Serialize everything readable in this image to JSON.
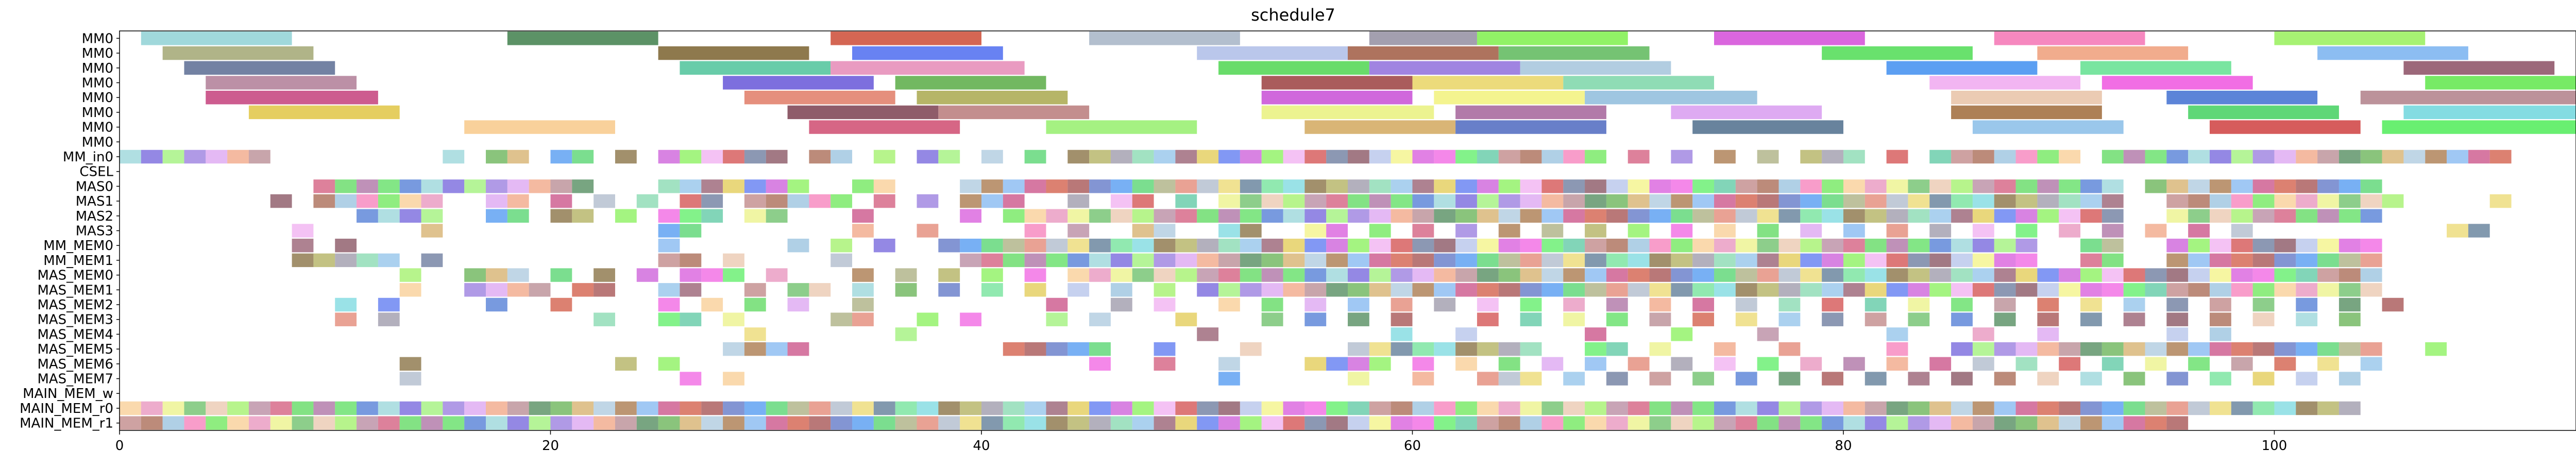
{
  "chart_data": {
    "type": "gantt",
    "title": "schedule7",
    "xlabel": "",
    "ylabel": "",
    "xlim": [
      0,
      114
    ],
    "x_ticks": [
      0,
      20,
      40,
      60,
      80,
      100
    ],
    "grid": false,
    "legend": "none",
    "rows": [
      "MM0",
      "MM0",
      "MM0",
      "MM0",
      "MM0",
      "MM0",
      "MM0",
      "MM0",
      "MM_in0",
      "CSEL",
      "MAS0",
      "MAS1",
      "MAS2",
      "MAS3",
      "MM_MEM0",
      "MM_MEM1",
      "MAS_MEM0",
      "MAS_MEM1",
      "MAS_MEM2",
      "MAS_MEM3",
      "MAS_MEM4",
      "MAS_MEM5",
      "MAS_MEM6",
      "MAS_MEM7",
      "MAIN_MEM_w",
      "MAIN_MEM_r0",
      "MAIN_MEM_r1"
    ],
    "mm_tasks": [
      [
        [
          1,
          8,
          "#8fd1d5"
        ],
        [
          18,
          25,
          "#3f7f4b"
        ],
        [
          33,
          40,
          "#cd4b35"
        ],
        [
          45,
          52,
          "#a6b4c6"
        ],
        [
          58,
          63,
          "#938ea1"
        ],
        [
          63,
          70,
          "#7ef04b"
        ],
        [
          74,
          81,
          "#d44bd8"
        ],
        [
          87,
          94,
          "#f573b4"
        ],
        [
          100,
          107,
          "#98f05b"
        ]
      ],
      [
        [
          2,
          9,
          "#a2a773"
        ],
        [
          25,
          32,
          "#7a612e"
        ],
        [
          34,
          41,
          "#4d6cf0"
        ],
        [
          50,
          57,
          "#aebde8"
        ],
        [
          57,
          64,
          "#a05a42"
        ],
        [
          64,
          71,
          "#5db95a"
        ],
        [
          79,
          86,
          "#4fdc53"
        ],
        [
          89,
          96,
          "#ef9d79"
        ],
        [
          102,
          109,
          "#78b1f0"
        ]
      ],
      [
        [
          3,
          10,
          "#5b6c93"
        ],
        [
          26,
          33,
          "#4dc39a"
        ],
        [
          33,
          42,
          "#e589b6"
        ],
        [
          51,
          58,
          "#4fd650"
        ],
        [
          58,
          65,
          "#8f6fdc"
        ],
        [
          65,
          72,
          "#a5c4dc"
        ],
        [
          82,
          89,
          "#3f8ef0"
        ],
        [
          91,
          98,
          "#62e08f"
        ],
        [
          106,
          113,
          "#8b4d63"
        ]
      ],
      [
        [
          4,
          11,
          "#b07d97"
        ],
        [
          28,
          35,
          "#6656d8"
        ],
        [
          36,
          43,
          "#59ab45"
        ],
        [
          53,
          60,
          "#9b3f3f"
        ],
        [
          60,
          67,
          "#e9d564"
        ],
        [
          67,
          74,
          "#7bd6a8"
        ],
        [
          84,
          91,
          "#f0a8f0"
        ],
        [
          92,
          99,
          "#ef55df"
        ],
        [
          107,
          114,
          "#5fe64a"
        ]
      ],
      [
        [
          4,
          12,
          "#c43f7b"
        ],
        [
          29,
          36,
          "#e07b66"
        ],
        [
          37,
          44,
          "#a9a84e"
        ],
        [
          53,
          60,
          "#c84ed6"
        ],
        [
          61,
          68,
          "#f2f27b"
        ],
        [
          68,
          76,
          "#8ebcdc"
        ],
        [
          85,
          92,
          "#e8c2a6"
        ],
        [
          95,
          102,
          "#3f6fd1"
        ],
        [
          104,
          114,
          "#b07f88"
        ]
      ],
      [
        [
          6,
          13,
          "#e0c644"
        ],
        [
          31,
          38,
          "#7b4050"
        ],
        [
          38,
          45,
          "#b97a7a"
        ],
        [
          53,
          61,
          "#e9f17d"
        ],
        [
          62,
          69,
          "#a4639a"
        ],
        [
          72,
          79,
          "#d89bf0"
        ],
        [
          85,
          92,
          "#9f6a38"
        ],
        [
          96,
          103,
          "#43d05f"
        ],
        [
          106,
          114,
          "#6fd6dd"
        ]
      ],
      [
        [
          16,
          23,
          "#f8c98a"
        ],
        [
          32,
          39,
          "#cf4b70"
        ],
        [
          43,
          50,
          "#95ef6c"
        ],
        [
          55,
          62,
          "#d2a85e"
        ],
        [
          62,
          69,
          "#4e68c0"
        ],
        [
          73,
          80,
          "#4d6d8c"
        ],
        [
          86,
          93,
          "#88bde8"
        ],
        [
          97,
          104,
          "#cf3f3f"
        ],
        [
          105,
          114,
          "#4fec58"
        ]
      ]
    ],
    "sched_rows": [
      "MM_in0",
      "MAS0",
      "MAS1",
      "MAS2",
      "MAS3",
      "MM_MEM0",
      "MM_MEM1",
      "MAS_MEM0",
      "MAS_MEM1",
      "MAS_MEM2",
      "MAS_MEM3",
      "MAS_MEM4",
      "MAS_MEM5",
      "MAS_MEM6",
      "MAS_MEM7",
      "MAIN_MEM_r0",
      "MAIN_MEM_r1"
    ],
    "palette": [
      "#8fd1d5",
      "#a2a773",
      "#5b6c93",
      "#b07d97",
      "#c43f7b",
      "#e0c644",
      "#f8c98a",
      "#3f7f4b",
      "#7a612e",
      "#4dc39a",
      "#6656d8",
      "#e07b66",
      "#7b4050",
      "#cf4b70",
      "#cd4b35",
      "#4d6cf0",
      "#e589b6",
      "#59ab45",
      "#a9a84e",
      "#b97a7a",
      "#95ef6c",
      "#a6b4c6",
      "#aebde8",
      "#4fd650",
      "#9b3f3f",
      "#c84ed6",
      "#e9f17d",
      "#d2a85e",
      "#938ea1",
      "#a05a42",
      "#8f6fdc",
      "#e9d564",
      "#f2f27b",
      "#a4639a",
      "#4e68c0",
      "#7ef04b",
      "#5db95a",
      "#a5c4dc",
      "#7bd6a8",
      "#8ebcdc",
      "#d89bf0",
      "#4d6d8c",
      "#d44bd8",
      "#4fdc53",
      "#3f8ef0",
      "#f0a8f0",
      "#e8c2a6",
      "#9f6a38",
      "#88bde8",
      "#f573b4",
      "#ef9d79",
      "#62e08f",
      "#ef55df",
      "#3f6fd1",
      "#43d05f",
      "#cf3f3f",
      "#98f05b",
      "#78b1f0",
      "#8b4d63",
      "#5fe64a",
      "#b07f88",
      "#6fd6dd",
      "#4fec58"
    ],
    "sched_tasks": {
      "MM_in0": [
        0,
        1,
        2,
        3,
        4,
        5,
        6,
        15,
        17,
        18,
        20,
        21,
        23,
        25,
        26,
        27,
        28,
        29,
        30,
        32,
        33,
        35,
        37,
        38,
        40,
        42,
        44,
        45,
        46,
        47,
        48,
        49,
        50,
        51,
        52,
        53,
        54,
        55,
        56,
        57,
        58,
        59,
        60,
        61,
        62,
        63,
        64,
        65,
        66,
        67,
        68,
        70,
        72,
        74,
        76,
        78,
        79,
        80,
        82,
        84,
        85,
        86,
        87,
        88,
        89,
        90,
        92,
        93,
        94,
        95,
        96,
        97,
        98,
        99,
        100,
        101,
        102,
        103,
        104,
        105,
        106,
        107,
        108,
        109,
        110
      ],
      "MAS0": [
        9,
        10,
        11,
        12,
        13,
        14,
        15,
        16,
        17,
        18,
        19,
        20,
        21,
        25,
        26,
        27,
        28,
        29,
        30,
        31,
        34,
        35,
        39,
        40,
        41,
        42,
        43,
        44,
        45,
        46,
        47,
        48,
        49,
        50,
        51,
        52,
        53,
        54,
        55,
        56,
        57,
        58,
        59,
        60,
        61,
        62,
        63,
        64,
        65,
        66,
        67,
        68,
        69,
        70,
        71,
        72,
        73,
        74,
        75,
        76,
        77,
        78,
        79,
        80,
        81,
        82,
        83,
        84,
        85,
        86,
        87,
        88,
        89,
        90,
        91,
        92,
        94,
        95,
        96,
        97,
        98,
        99,
        100,
        101,
        102,
        103,
        104
      ],
      "MAS1": [
        7,
        9,
        10,
        11,
        12,
        13,
        14,
        17,
        18,
        20,
        22,
        24,
        26,
        27,
        29,
        30,
        31,
        32,
        33,
        35,
        37,
        39,
        40,
        41,
        44,
        46,
        47,
        49,
        51,
        52,
        53,
        54,
        55,
        56,
        57,
        58,
        59,
        60,
        61,
        62,
        63,
        64,
        65,
        66,
        67,
        68,
        69,
        70,
        71,
        72,
        73,
        74,
        75,
        76,
        77,
        78,
        79,
        80,
        81,
        82,
        83,
        84,
        85,
        86,
        87,
        88,
        89,
        90,
        91,
        92,
        95,
        96,
        97,
        98,
        99,
        100,
        101,
        102,
        103,
        104,
        105,
        110
      ],
      "MAS2": [
        11,
        12,
        13,
        14,
        17,
        18,
        20,
        21,
        23,
        25,
        26,
        27,
        29,
        30,
        34,
        39,
        41,
        42,
        43,
        44,
        45,
        46,
        47,
        48,
        49,
        50,
        51,
        52,
        53,
        54,
        55,
        56,
        57,
        58,
        59,
        60,
        61,
        62,
        63,
        64,
        65,
        66,
        67,
        68,
        69,
        70,
        71,
        72,
        73,
        74,
        75,
        76,
        77,
        78,
        79,
        80,
        81,
        82,
        83,
        84,
        85,
        86,
        87,
        88,
        89,
        90,
        91,
        92,
        95,
        96,
        97,
        98,
        99,
        100,
        101,
        102,
        103,
        104
      ],
      "MAS3": [
        8,
        14,
        25,
        26,
        34,
        37,
        42,
        44,
        47,
        48,
        51,
        52,
        55,
        56,
        58,
        60,
        62,
        64,
        66,
        68,
        70,
        72,
        74,
        76,
        78,
        80,
        82,
        84,
        86,
        88,
        90,
        92,
        94,
        96,
        98,
        108,
        109
      ],
      "MM_MEM0": [
        8,
        10,
        25,
        31,
        33,
        35,
        38,
        39,
        40,
        41,
        42,
        43,
        44,
        45,
        46,
        47,
        48,
        49,
        50,
        51,
        52,
        53,
        54,
        55,
        56,
        57,
        58,
        59,
        60,
        61,
        62,
        63,
        64,
        65,
        66,
        67,
        68,
        69,
        70,
        71,
        72,
        73,
        74,
        75,
        76,
        77,
        78,
        79,
        80,
        81,
        82,
        83,
        84,
        85,
        86,
        87,
        88,
        91,
        92,
        95,
        96,
        97,
        98,
        99,
        100,
        101,
        102,
        103,
        104
      ],
      "MM_MEM1": [
        8,
        9,
        10,
        11,
        12,
        14,
        25,
        26,
        28,
        33,
        39,
        40,
        41,
        42,
        43,
        44,
        45,
        46,
        47,
        48,
        49,
        50,
        51,
        52,
        53,
        54,
        55,
        56,
        57,
        58,
        59,
        60,
        61,
        62,
        63,
        64,
        65,
        66,
        67,
        68,
        69,
        70,
        71,
        72,
        73,
        74,
        75,
        76,
        77,
        78,
        79,
        80,
        81,
        82,
        83,
        84,
        85,
        86,
        87,
        88,
        91,
        92,
        95,
        96,
        97,
        98,
        99,
        100,
        101,
        102,
        103,
        104
      ],
      "MAS_MEM0": [
        13,
        16,
        17,
        18,
        20,
        22,
        24,
        26,
        27,
        28,
        30,
        34,
        36,
        38,
        40,
        42,
        44,
        45,
        46,
        47,
        48,
        49,
        50,
        51,
        52,
        53,
        54,
        55,
        56,
        57,
        58,
        59,
        60,
        61,
        62,
        63,
        64,
        65,
        66,
        67,
        68,
        69,
        70,
        71,
        72,
        73,
        74,
        75,
        76,
        77,
        78,
        79,
        80,
        81,
        82,
        83,
        84,
        85,
        86,
        87,
        88,
        89,
        90,
        91,
        92,
        93,
        94,
        95,
        96,
        97,
        98,
        99,
        100,
        101,
        102,
        103,
        104
      ],
      "MAS_MEM1": [
        13,
        16,
        17,
        18,
        19,
        21,
        22,
        25,
        26,
        29,
        31,
        32,
        34,
        36,
        38,
        40,
        42,
        44,
        46,
        48,
        50,
        51,
        52,
        53,
        54,
        55,
        56,
        57,
        58,
        59,
        60,
        61,
        62,
        63,
        64,
        65,
        66,
        67,
        68,
        69,
        70,
        71,
        72,
        73,
        74,
        75,
        76,
        77,
        78,
        79,
        80,
        81,
        82,
        83,
        84,
        85,
        86,
        87,
        88,
        89,
        90,
        91,
        92,
        93,
        94,
        95,
        96,
        97,
        98,
        99,
        100,
        101,
        102,
        103,
        104
      ],
      "MAS_MEM2": [
        10,
        12,
        17,
        20,
        25,
        27,
        29,
        31,
        34,
        43,
        46,
        48,
        51,
        53,
        55,
        57,
        59,
        61,
        63,
        65,
        67,
        69,
        71,
        73,
        75,
        77,
        79,
        81,
        83,
        85,
        87,
        89,
        91,
        93,
        95,
        97,
        99,
        101,
        103,
        105
      ],
      "MAS_MEM3": [
        10,
        12,
        22,
        25,
        26,
        28,
        33,
        34,
        37,
        39,
        43,
        45,
        49,
        53,
        55,
        57,
        59,
        63,
        65,
        67,
        69,
        71,
        73,
        75,
        77,
        79,
        81,
        83,
        85,
        87,
        89,
        91,
        93,
        95,
        97,
        99,
        101,
        103
      ],
      "MAS_MEM4": [
        29,
        36,
        50,
        59,
        62,
        68,
        72,
        76,
        82,
        86,
        89,
        95,
        97
      ],
      "MAS_MEM5": [
        28,
        29,
        30,
        31,
        41,
        42,
        43,
        44,
        45,
        48,
        52,
        57,
        58,
        59,
        60,
        61,
        62,
        63,
        64,
        65,
        68,
        69,
        71,
        74,
        77,
        82,
        85,
        86,
        87,
        88,
        89,
        90,
        91,
        92,
        93,
        94,
        95,
        96,
        97,
        98,
        99,
        100,
        101,
        102,
        103,
        104,
        107
      ],
      "MAS_MEM6": [
        13,
        23,
        25,
        45,
        48,
        51,
        55,
        56,
        57,
        58,
        60,
        62,
        64,
        66,
        68,
        70,
        72,
        74,
        76,
        78,
        80,
        82,
        84,
        86,
        88,
        90,
        92,
        94,
        96,
        98,
        100,
        102,
        104
      ],
      "MAS_MEM7": [
        13,
        26,
        28,
        51,
        57,
        60,
        63,
        64,
        65,
        67,
        69,
        71,
        73,
        75,
        77,
        79,
        81,
        83,
        85,
        87,
        89,
        91,
        93,
        95,
        97,
        99,
        101,
        103
      ],
      "MAIN_MEM_r0": [
        0,
        1,
        2,
        3,
        4,
        5,
        6,
        7,
        8,
        9,
        10,
        11,
        12,
        13,
        14,
        15,
        16,
        17,
        18,
        19,
        20,
        21,
        22,
        23,
        24,
        25,
        26,
        27,
        28,
        29,
        30,
        31,
        32,
        33,
        34,
        35,
        36,
        37,
        38,
        39,
        40,
        41,
        42,
        43,
        44,
        45,
        46,
        47,
        48,
        49,
        50,
        51,
        52,
        53,
        54,
        55,
        56,
        57,
        58,
        59,
        60,
        61,
        62,
        63,
        64,
        65,
        66,
        67,
        68,
        69,
        70,
        71,
        72,
        73,
        74,
        75,
        76,
        77,
        78,
        79,
        80,
        81,
        82,
        83,
        84,
        85,
        86,
        87,
        88,
        89,
        90,
        91,
        92,
        93,
        94,
        95,
        96,
        97,
        98,
        99,
        100,
        101,
        102,
        103
      ],
      "MAIN_MEM_r1": [
        0,
        1,
        2,
        3,
        4,
        5,
        6,
        7,
        8,
        9,
        10,
        11,
        12,
        13,
        14,
        15,
        16,
        17,
        18,
        19,
        20,
        21,
        22,
        23,
        24,
        25,
        26,
        27,
        28,
        29,
        30,
        31,
        32,
        33,
        34,
        35,
        36,
        37,
        38,
        39,
        40,
        41,
        42,
        43,
        44,
        45,
        46,
        47,
        48,
        49,
        50,
        51,
        52,
        53,
        54,
        55,
        56,
        57,
        58,
        59,
        60,
        61,
        62,
        63,
        64,
        65,
        66,
        67,
        68,
        69,
        70,
        71,
        72,
        73,
        74,
        75,
        76,
        77,
        78,
        79,
        80,
        81,
        82,
        83,
        84,
        85,
        86,
        87,
        88,
        89,
        90,
        91,
        92,
        93,
        94,
        95
      ]
    }
  }
}
